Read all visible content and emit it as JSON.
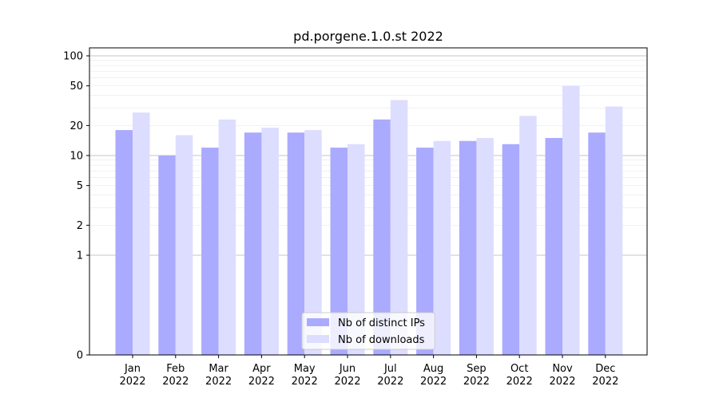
{
  "chart_data": {
    "type": "bar",
    "title": "pd.porgene.1.0.st 2022",
    "xlabel": "",
    "ylabel": "",
    "y_scale": "symlog",
    "y_ticks": [
      0,
      1,
      2,
      5,
      10,
      20,
      50,
      100
    ],
    "y_tick_labels": [
      "0",
      "1",
      "2",
      "5",
      "10",
      "20",
      "50",
      "100"
    ],
    "grid": true,
    "legend_position": "bottom-center",
    "categories": [
      {
        "month": "Jan",
        "year": "2022"
      },
      {
        "month": "Feb",
        "year": "2022"
      },
      {
        "month": "Mar",
        "year": "2022"
      },
      {
        "month": "Apr",
        "year": "2022"
      },
      {
        "month": "May",
        "year": "2022"
      },
      {
        "month": "Jun",
        "year": "2022"
      },
      {
        "month": "Jul",
        "year": "2022"
      },
      {
        "month": "Aug",
        "year": "2022"
      },
      {
        "month": "Sep",
        "year": "2022"
      },
      {
        "month": "Oct",
        "year": "2022"
      },
      {
        "month": "Nov",
        "year": "2022"
      },
      {
        "month": "Dec",
        "year": "2022"
      }
    ],
    "series": [
      {
        "name": "Nb of distinct IPs",
        "color": "#aaaaff",
        "values": [
          18,
          10,
          12,
          17,
          17,
          12,
          23,
          12,
          14,
          13,
          15,
          17
        ]
      },
      {
        "name": "Nb of downloads",
        "color": "#ddddff",
        "values": [
          27,
          16,
          23,
          19,
          18,
          13,
          36,
          14,
          15,
          25,
          50,
          31
        ]
      }
    ]
  }
}
